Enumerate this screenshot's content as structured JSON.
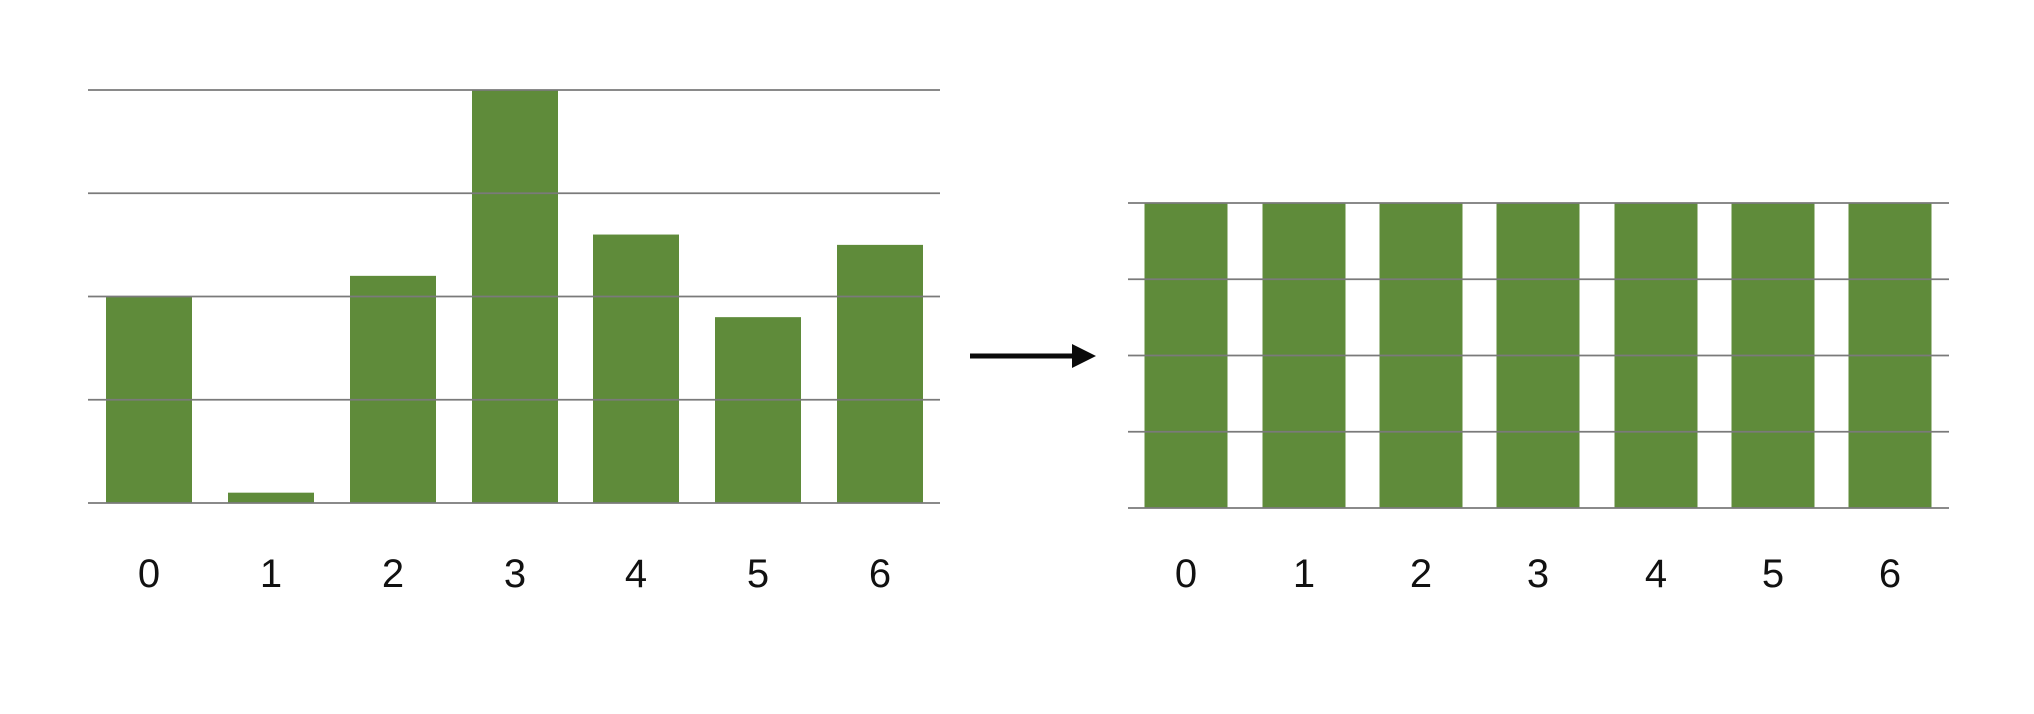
{
  "colors": {
    "bar": "#5f8b3a",
    "grid": "#7a7a7a",
    "arrow": "#0a0a0a",
    "text": "#111111"
  },
  "chart_data": [
    {
      "type": "bar",
      "categories": [
        "0",
        "1",
        "2",
        "3",
        "4",
        "5",
        "6"
      ],
      "values": [
        2.0,
        0.1,
        2.2,
        4.0,
        2.6,
        1.8,
        2.5
      ],
      "ylim": [
        0,
        4
      ],
      "grid": true,
      "title": "",
      "xlabel": "",
      "ylabel": ""
    },
    {
      "type": "bar",
      "categories": [
        "0",
        "1",
        "2",
        "3",
        "4",
        "5",
        "6"
      ],
      "values": [
        4,
        4,
        4,
        4,
        4,
        4,
        4
      ],
      "ylim": [
        0,
        4
      ],
      "grid": true,
      "title": "",
      "xlabel": "",
      "ylabel": ""
    }
  ],
  "connector": {
    "icon": "right-arrow-icon"
  }
}
